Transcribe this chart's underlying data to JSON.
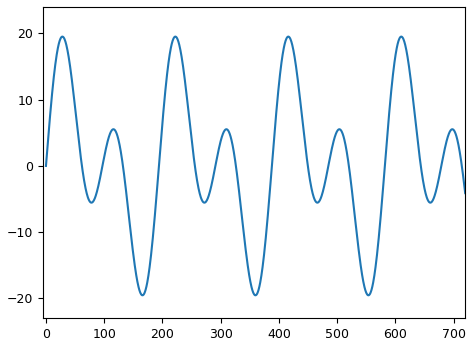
{
  "x_start": 0,
  "x_end": 720,
  "num_points": 1441,
  "line_color": "#1f77b4",
  "line_width": 1.5,
  "background_color": "#ffffff",
  "xlim": [
    -5,
    720
  ],
  "ylim": [
    -23,
    24
  ],
  "yticks": [
    -20,
    -10,
    0,
    10,
    20
  ],
  "xticks": [
    0,
    100,
    200,
    300,
    400,
    500,
    600,
    700
  ],
  "figsize": [
    4.74,
    3.48
  ],
  "dpi": 100,
  "A1": 12,
  "A2": 10,
  "f1": 0.010472,
  "f2": 0.005236,
  "phase1": 0.0,
  "phase2": 0.0
}
